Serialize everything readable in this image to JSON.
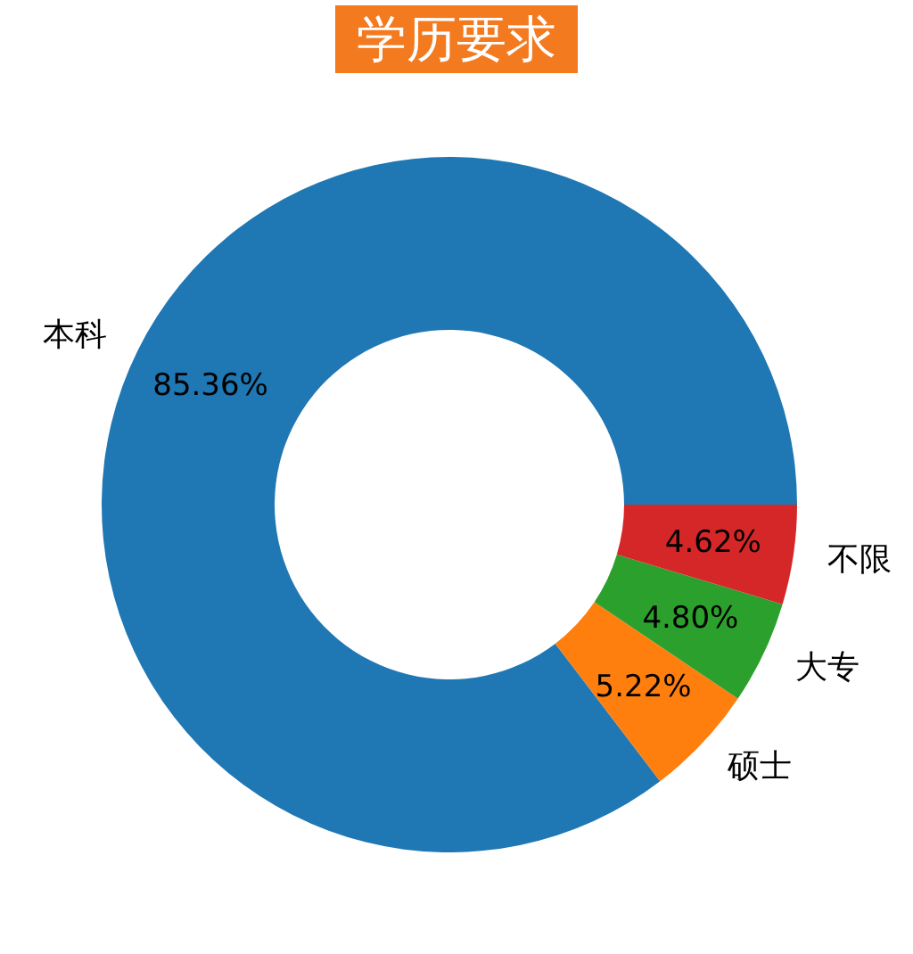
{
  "chart_data": {
    "type": "donut",
    "title": "学历要求",
    "categories": [
      "本科",
      "硕士",
      "大专",
      "不限"
    ],
    "values": [
      85.36,
      5.22,
      4.8,
      4.62
    ],
    "colors": [
      "#1f77b4",
      "#ff7f0e",
      "#2ca02c",
      "#d62728"
    ],
    "value_labels": [
      "85.36%",
      "5.22%",
      "4.80%",
      "4.62%"
    ]
  }
}
